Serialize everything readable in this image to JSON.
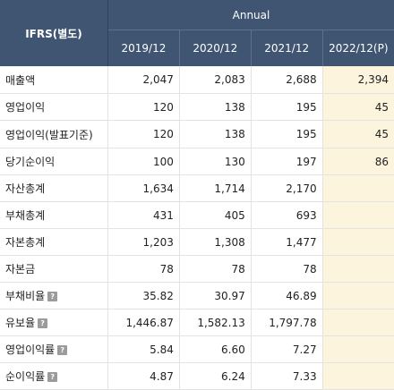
{
  "header": {
    "row_header": "IFRS(별도)",
    "group": "Annual",
    "years": [
      "2019/12",
      "2020/12",
      "2021/12",
      "2022/12(P)"
    ]
  },
  "rows": [
    {
      "label": "매출액",
      "values": [
        "2,047",
        "2,083",
        "2,688",
        "2,394"
      ],
      "help": false
    },
    {
      "label": "영업이익",
      "values": [
        "120",
        "138",
        "195",
        "45"
      ],
      "help": false
    },
    {
      "label": "영업이익(발표기준)",
      "values": [
        "120",
        "138",
        "195",
        "45"
      ],
      "help": false
    },
    {
      "label": "당기순이익",
      "values": [
        "100",
        "130",
        "197",
        "86"
      ],
      "help": false
    },
    {
      "label": "자산총계",
      "values": [
        "1,634",
        "1,714",
        "2,170",
        ""
      ],
      "help": false
    },
    {
      "label": "부채총계",
      "values": [
        "431",
        "405",
        "693",
        ""
      ],
      "help": false
    },
    {
      "label": "자본총계",
      "values": [
        "1,203",
        "1,308",
        "1,477",
        ""
      ],
      "help": false
    },
    {
      "label": "자본금",
      "values": [
        "78",
        "78",
        "78",
        ""
      ],
      "help": false
    },
    {
      "label": "부채비율",
      "values": [
        "35.82",
        "30.97",
        "46.89",
        ""
      ],
      "help": true
    },
    {
      "label": "유보율",
      "values": [
        "1,446.87",
        "1,582.13",
        "1,797.78",
        ""
      ],
      "help": true
    },
    {
      "label": "영업이익률",
      "values": [
        "5.84",
        "6.60",
        "7.27",
        ""
      ],
      "help": true
    },
    {
      "label": "순이익률",
      "values": [
        "4.87",
        "6.24",
        "7.33",
        ""
      ],
      "help": true
    }
  ]
}
